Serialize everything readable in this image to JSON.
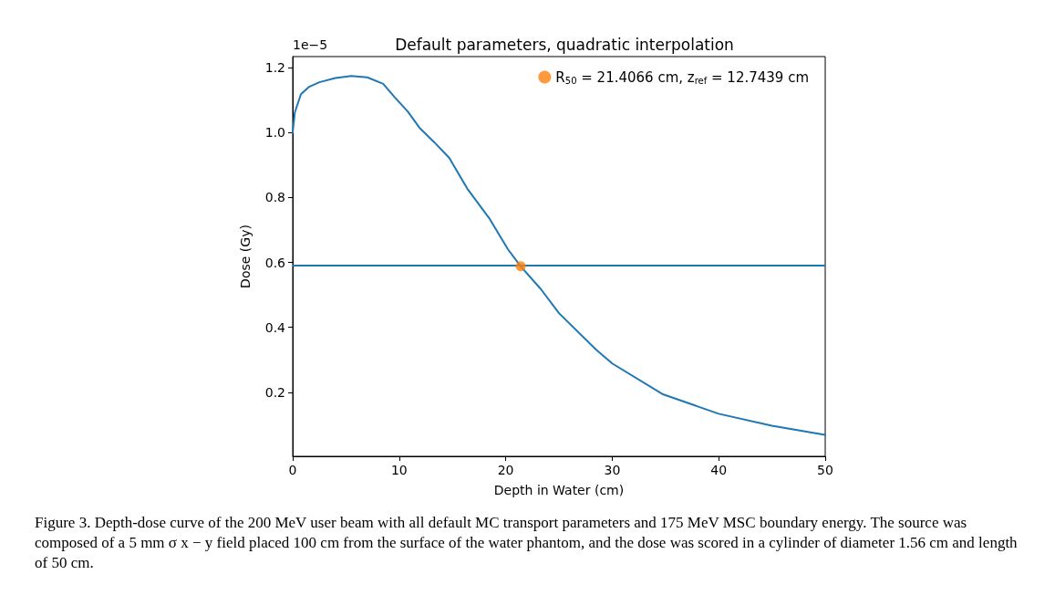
{
  "chart_data": {
    "type": "line",
    "title": "Default parameters, quadratic interpolation",
    "xlabel": "Depth in Water (cm)",
    "ylabel": "Dose (Gy)",
    "series": [
      {
        "color": "#1f77b4",
        "x": [
          0,
          0.2,
          0.77,
          1.5,
          2.5,
          4,
          5.5,
          7,
          8.5,
          9.6,
          10.8,
          11.9,
          13.3,
          14.7,
          16.4,
          18.5,
          20.2,
          21.41,
          23.3,
          25,
          28.5,
          30,
          34.7,
          40,
          45,
          50
        ],
        "values": [
          1.0,
          1.062,
          1.118,
          1.14,
          1.155,
          1.168,
          1.174,
          1.17,
          1.15,
          1.108,
          1.065,
          1.015,
          0.97,
          0.922,
          0.827,
          0.734,
          0.641,
          0.588,
          0.518,
          0.444,
          0.331,
          0.289,
          0.195,
          0.134,
          0.097,
          0.069
        ]
      },
      {
        "type": "scatter",
        "name": "R$_{50}$ = 21.4066 cm, z$_{ref}$ = 12.7439 cm",
        "color": "#ff7f0e",
        "x": [
          21.41
        ],
        "values": [
          0.588
        ]
      }
    ],
    "ref_lines": [
      {
        "axis": "y",
        "value": 0.588,
        "color": "#1f77b4"
      }
    ],
    "xlim": [
      0,
      50
    ],
    "xticks": [
      0,
      10,
      20,
      30,
      40,
      50
    ],
    "ylim": [
      0.003,
      1.234
    ],
    "yticks": [
      0.2,
      0.4,
      0.6,
      0.8,
      {
        "value": 1,
        "label": "1.0"
      },
      1.2
    ],
    "grid": false,
    "legend": "top right",
    "annotations": [
      "1e−5",
      "Figure 3. Depth-dose curve of the 200 MeV user beam with all default MC transport parameters and 175 MeV MSC boundary energy. The source was composed of a 5 mm σ x − y field placed 100 cm from the surface of the water phantom, and the dose was scored in a cylinder of diameter 1.56 cm and length of 50 cm."
    ]
  }
}
